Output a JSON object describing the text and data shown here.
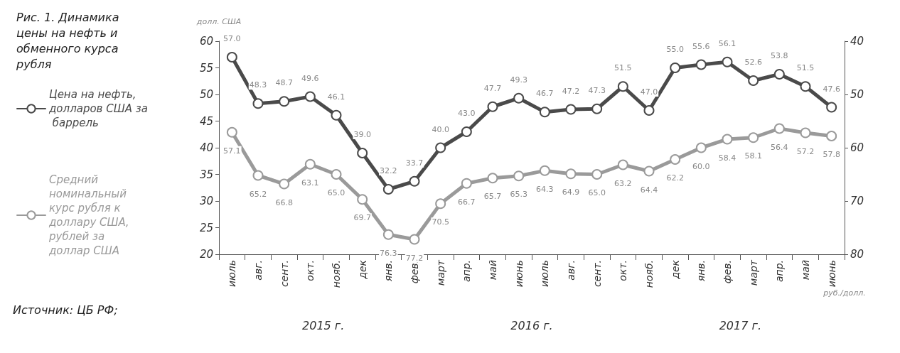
{
  "chart_data": {
    "type": "line",
    "title": "Рис. 1. Динамика цены на нефть и обменного курса рубля",
    "ylabel": "долл. США",
    "y2label": "руб./долл.",
    "categories": [
      "июль",
      "авг.",
      "сент.",
      "окт.",
      "нояб.",
      "дек",
      "янв.",
      "фев.",
      "март",
      "апр.",
      "май",
      "июнь",
      "июль",
      "авг.",
      "сент.",
      "окт.",
      "нояб.",
      "дек",
      "янв.",
      "фев.",
      "март",
      "апр.",
      "май",
      "июнь"
    ],
    "series": [
      {
        "name": "Цена на нефть, долларов США за баррель",
        "color": "#4a4a4a",
        "values": [
          57.0,
          48.3,
          48.7,
          49.6,
          46.1,
          39.0,
          32.2,
          33.7,
          40.0,
          43.0,
          47.7,
          49.3,
          46.7,
          47.2,
          47.3,
          51.5,
          47.0,
          55.0,
          55.6,
          56.1,
          52.6,
          53.8,
          51.5,
          47.6
        ],
        "value_labels": [
          "57.0",
          "48.3",
          "48.7",
          "49.6",
          "46.1",
          "39.0",
          "32.2",
          "33.7",
          "40.0",
          "43.0",
          "47.7",
          "49.3",
          "46.7",
          "47.2",
          "47.3",
          "51.5",
          "47.0",
          "55.0",
          "55.6",
          "56.1",
          "52.6",
          "53.8",
          "51.5",
          "47.6"
        ]
      },
      {
        "name": "Средний номинальный курс рубля к доллару США, рублей за доллар США",
        "color": "#9a9a9a",
        "axis": "y2",
        "values": [
          57.1,
          65.2,
          66.8,
          63.1,
          65.0,
          69.7,
          76.3,
          77.2,
          70.5,
          66.7,
          65.7,
          65.3,
          64.3,
          64.9,
          65.0,
          63.2,
          64.4,
          62.2,
          60.0,
          58.4,
          58.1,
          56.4,
          57.2,
          57.8
        ],
        "value_labels": [
          "57.1",
          "65.2",
          "66.8",
          "63.1",
          "65.0",
          "69.7",
          "76.3",
          "77.2",
          "70.5",
          "66.7",
          "65.7",
          "65.3",
          "64.3",
          "64.9",
          "65.0",
          "63.2",
          "64.4",
          "62.2",
          "60.0",
          "58.4",
          "58.1",
          "56.4",
          "57.2",
          "57.8"
        ]
      }
    ],
    "ylim": [
      20,
      60
    ],
    "yticks": [
      20,
      25,
      30,
      35,
      40,
      45,
      50,
      55,
      60
    ],
    "y2lim": [
      80,
      40
    ],
    "y2ticks": [
      40,
      50,
      60,
      70,
      80
    ],
    "marker": "circle",
    "line_style": "solid",
    "grid": false,
    "legend": "left",
    "annotations": [
      "2015 г.",
      "2016 г.",
      "2017 г.",
      "Источник: ЦБ РФ;"
    ]
  }
}
